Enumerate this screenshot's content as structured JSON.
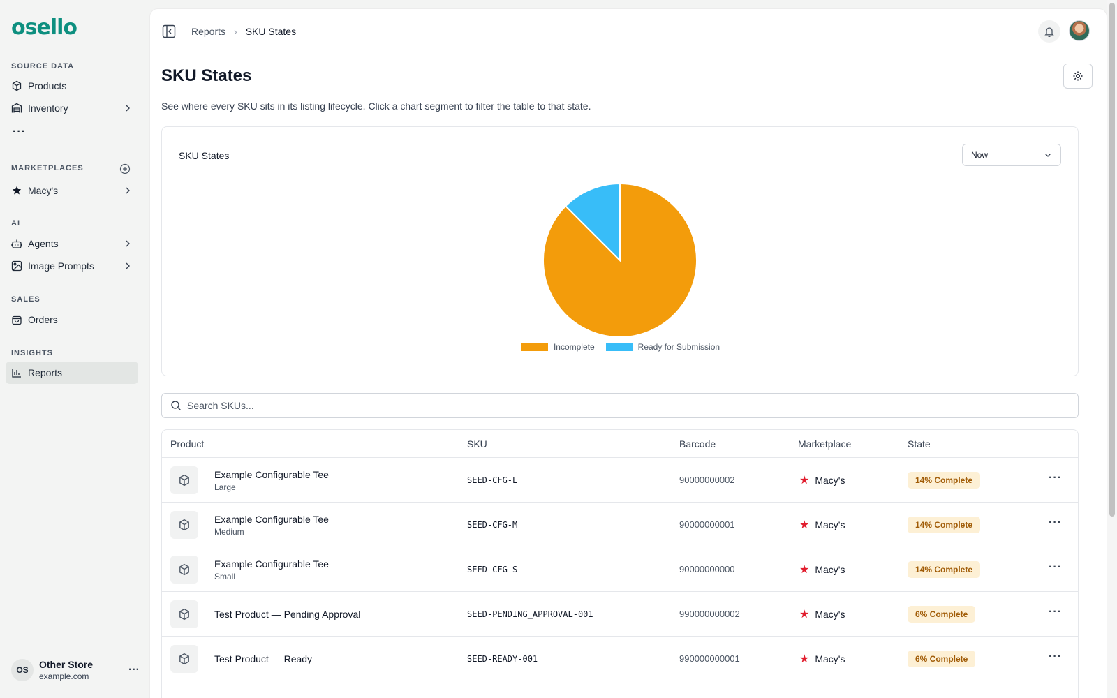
{
  "brand": {
    "name": "osello",
    "accent": "#0d8f7f"
  },
  "sidebar": {
    "sections": {
      "source_data": "SOURCE DATA",
      "marketplaces": "MARKETPLACES",
      "ai": "AI",
      "sales": "SALES",
      "insights": "INSIGHTS"
    },
    "items": {
      "products": "Products",
      "inventory": "Inventory",
      "more": "···",
      "macys": "Macy's",
      "agents": "Agents",
      "image_prompts": "Image Prompts",
      "orders": "Orders",
      "reports": "Reports"
    },
    "store": {
      "initials": "OS",
      "name": "Other Store",
      "domain": "example.com",
      "menu": "···"
    }
  },
  "breadcrumb": {
    "parent": "Reports",
    "separator": "›",
    "current": "SKU States"
  },
  "page": {
    "title": "SKU States",
    "description": "See where every SKU sits in its listing lifecycle. Click a chart segment to filter the table to that state."
  },
  "chart_card": {
    "title": "SKU States",
    "period": {
      "selected": "Now"
    }
  },
  "chart_data": {
    "type": "pie",
    "title": "SKU States",
    "labels": [
      "Incomplete",
      "Ready for Submission"
    ],
    "values": [
      87.5,
      12.5
    ],
    "colors": [
      "#f39c0b",
      "#38bdf8"
    ],
    "legend_position": "bottom"
  },
  "search": {
    "placeholder": "Search SKUs..."
  },
  "table": {
    "columns": [
      "Product",
      "SKU",
      "Barcode",
      "Marketplace",
      "State"
    ],
    "rows": [
      {
        "name": "Example Configurable Tee",
        "variant": "Large",
        "sku": "SEED-CFG-L",
        "barcode": "90000000002",
        "marketplace": "Macy's",
        "state": "14% Complete"
      },
      {
        "name": "Example Configurable Tee",
        "variant": "Medium",
        "sku": "SEED-CFG-M",
        "barcode": "90000000001",
        "marketplace": "Macy's",
        "state": "14% Complete"
      },
      {
        "name": "Example Configurable Tee",
        "variant": "Small",
        "sku": "SEED-CFG-S",
        "barcode": "90000000000",
        "marketplace": "Macy's",
        "state": "14% Complete"
      },
      {
        "name": "Test Product — Pending Approval",
        "variant": "",
        "sku": "SEED-PENDING_APPROVAL-001",
        "barcode": "990000000002",
        "marketplace": "Macy's",
        "state": "6% Complete"
      },
      {
        "name": "Test Product — Ready",
        "variant": "",
        "sku": "SEED-READY-001",
        "barcode": "990000000001",
        "marketplace": "Macy's",
        "state": "6% Complete"
      }
    ],
    "row_menu": "···",
    "marketplace_icon": "star-icon"
  }
}
